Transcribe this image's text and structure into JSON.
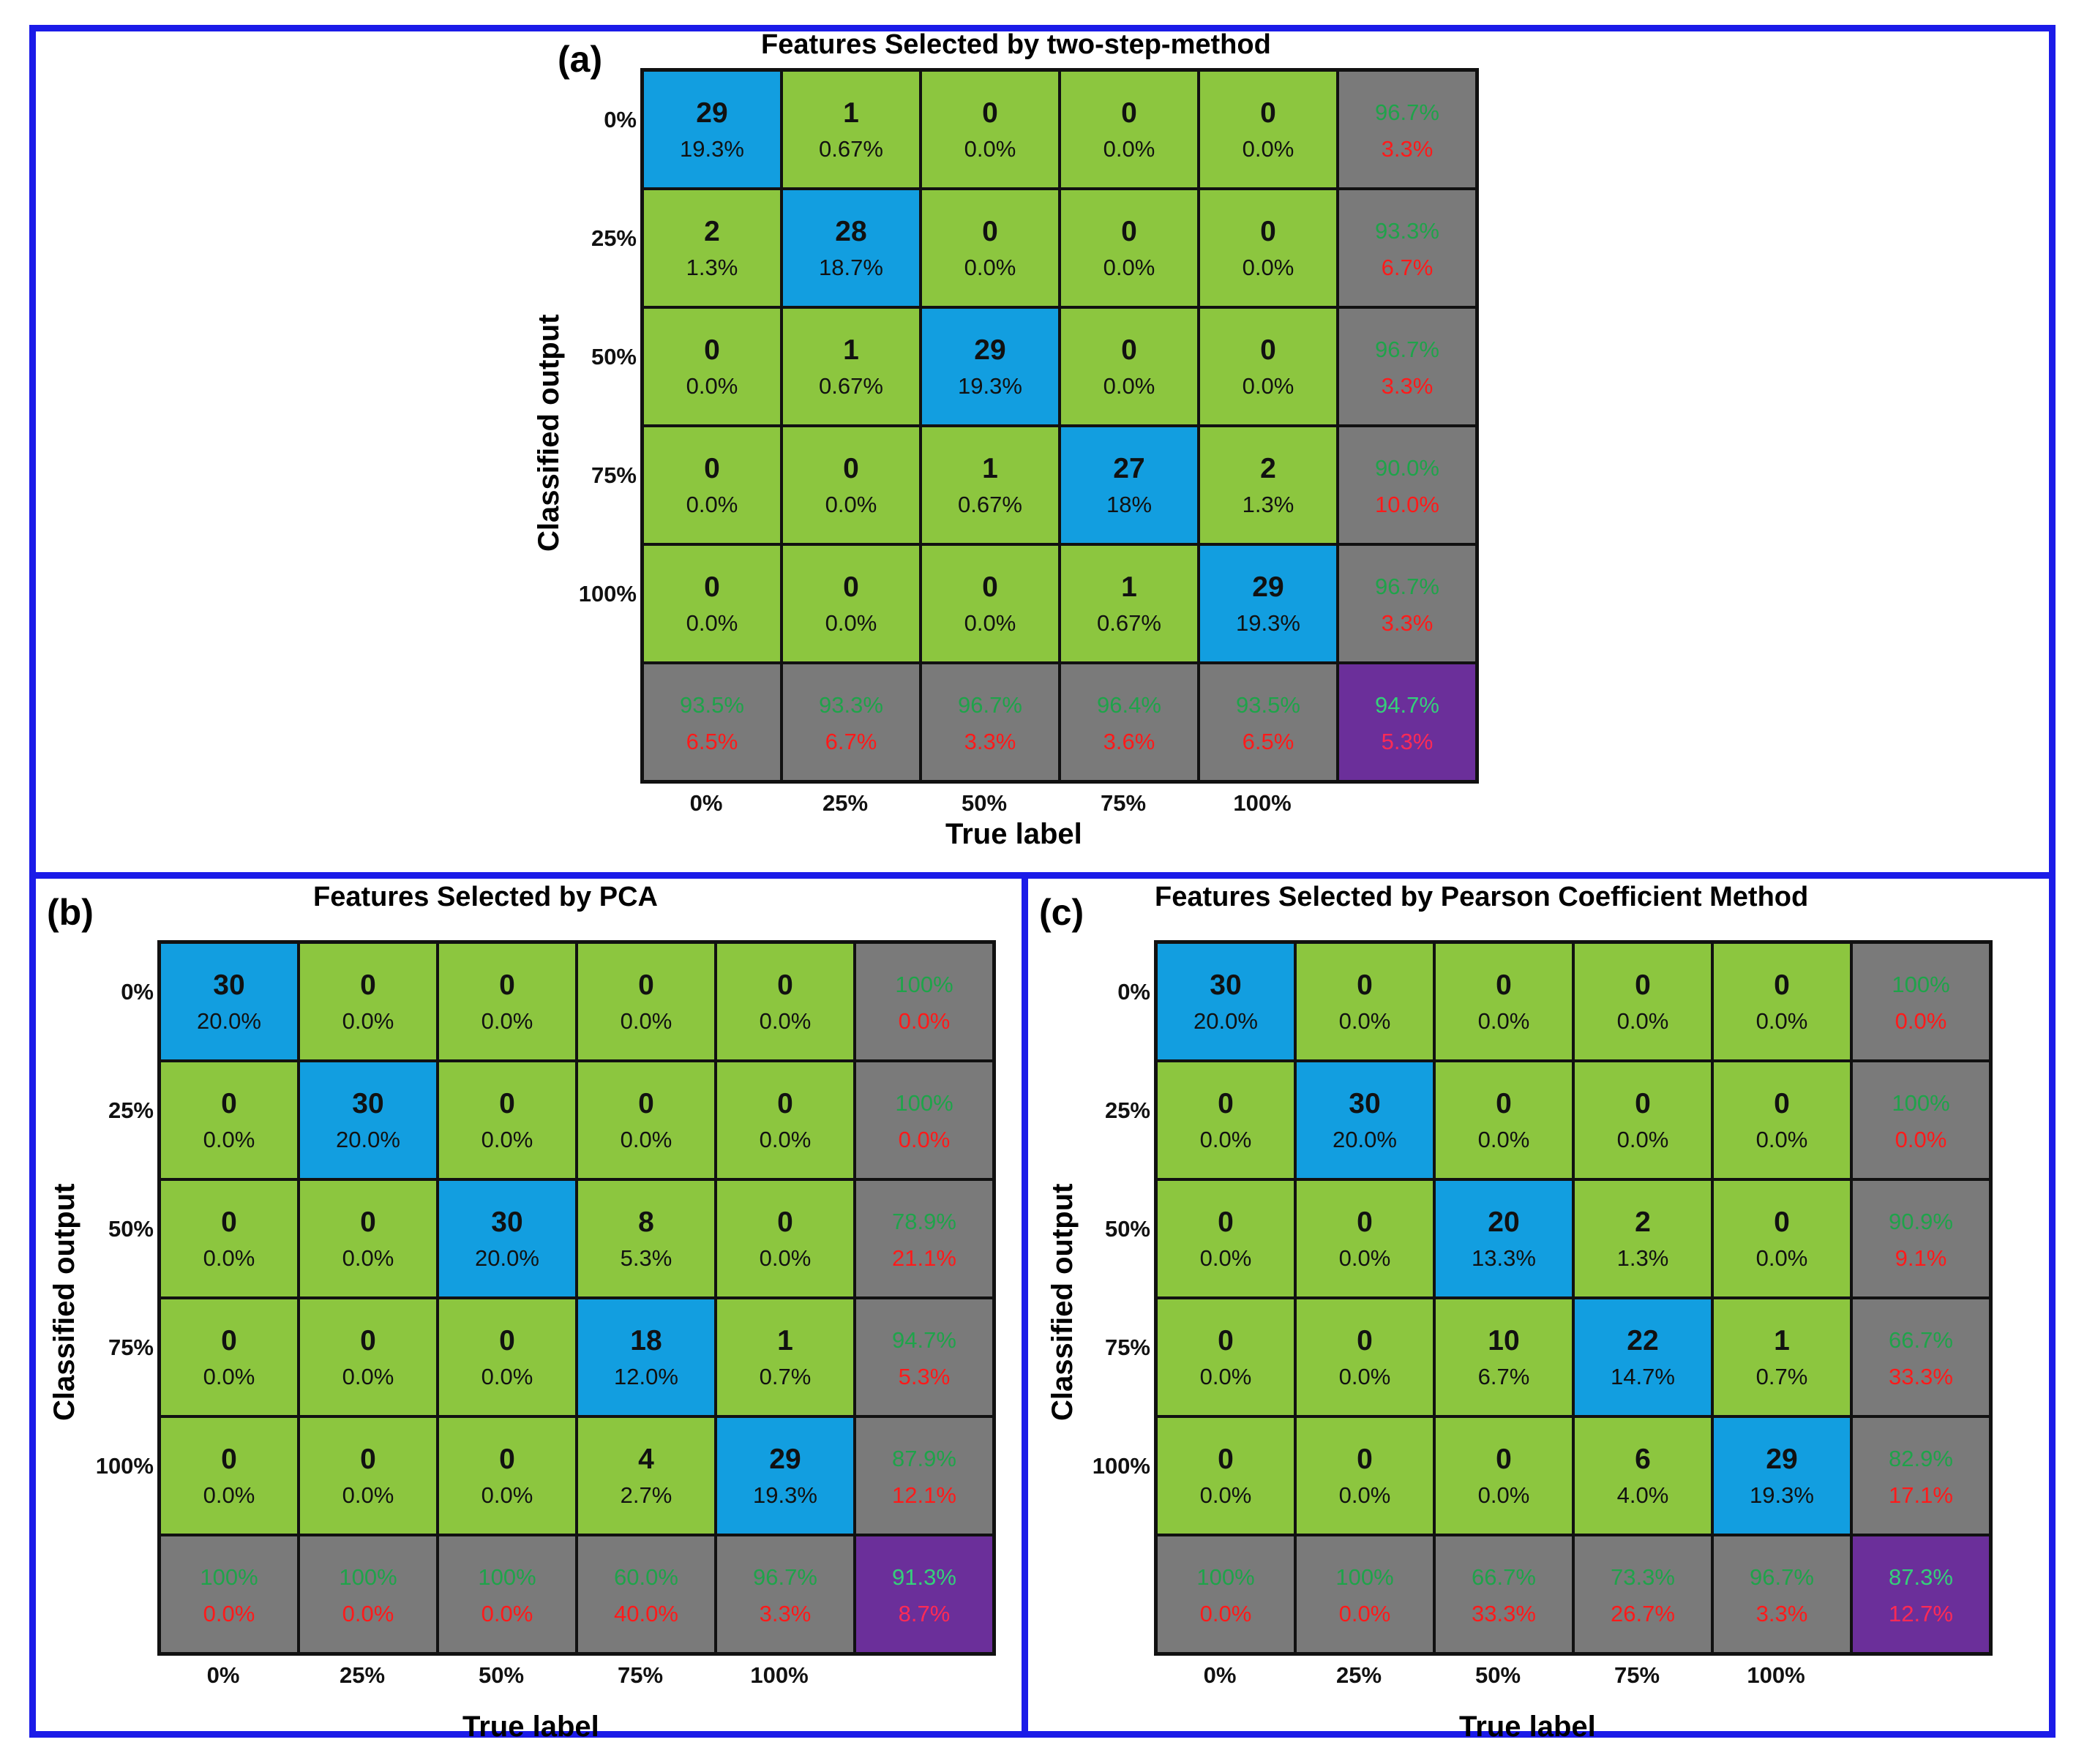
{
  "colors": {
    "frame": "#1b1be8",
    "correct_cell": "#129ee0",
    "wrong_cell": "#8cc63f",
    "summary_cell": "#7a7a7a",
    "overall_cell": "#6b2f9a",
    "good_text": "#1fa34a",
    "bad_text": "#ff1a1a"
  },
  "chart_data": [
    {
      "type": "heatmap",
      "panel": "(a)",
      "title": "Features Selected by two-step-method",
      "xlabel": "True label",
      "ylabel": "Classified output",
      "row_labels": [
        "0%",
        "25%",
        "50%",
        "75%",
        "100%"
      ],
      "col_labels": [
        "0%",
        "25%",
        "50%",
        "75%",
        "100%"
      ],
      "counts": [
        [
          29,
          1,
          0,
          0,
          0
        ],
        [
          2,
          28,
          0,
          0,
          0
        ],
        [
          0,
          1,
          29,
          0,
          0
        ],
        [
          0,
          0,
          1,
          27,
          2
        ],
        [
          0,
          0,
          0,
          1,
          29
        ]
      ],
      "percents": [
        [
          "19.3%",
          "0.67%",
          "0.0%",
          "0.0%",
          "0.0%"
        ],
        [
          "1.3%",
          "18.7%",
          "0.0%",
          "0.0%",
          "0.0%"
        ],
        [
          "0.0%",
          "0.67%",
          "19.3%",
          "0.0%",
          "0.0%"
        ],
        [
          "0.0%",
          "0.0%",
          "0.67%",
          "18%",
          "1.3%"
        ],
        [
          "0.0%",
          "0.0%",
          "0.0%",
          "0.67%",
          "19.3%"
        ]
      ],
      "row_summary": [
        [
          "96.7%",
          "3.3%"
        ],
        [
          "93.3%",
          "6.7%"
        ],
        [
          "96.7%",
          "3.3%"
        ],
        [
          "90.0%",
          "10.0%"
        ],
        [
          "96.7%",
          "3.3%"
        ]
      ],
      "col_summary": [
        [
          "93.5%",
          "6.5%"
        ],
        [
          "93.3%",
          "6.7%"
        ],
        [
          "96.7%",
          "3.3%"
        ],
        [
          "96.4%",
          "3.6%"
        ],
        [
          "93.5%",
          "6.5%"
        ]
      ],
      "overall": [
        "94.7%",
        "5.3%"
      ]
    },
    {
      "type": "heatmap",
      "panel": "(b)",
      "title": "Features Selected by PCA",
      "xlabel": "True label",
      "ylabel": "Classified output",
      "row_labels": [
        "0%",
        "25%",
        "50%",
        "75%",
        "100%"
      ],
      "col_labels": [
        "0%",
        "25%",
        "50%",
        "75%",
        "100%"
      ],
      "counts": [
        [
          30,
          0,
          0,
          0,
          0
        ],
        [
          0,
          30,
          0,
          0,
          0
        ],
        [
          0,
          0,
          30,
          8,
          0
        ],
        [
          0,
          0,
          0,
          18,
          1
        ],
        [
          0,
          0,
          0,
          4,
          29
        ]
      ],
      "percents": [
        [
          "20.0%",
          "0.0%",
          "0.0%",
          "0.0%",
          "0.0%"
        ],
        [
          "0.0%",
          "20.0%",
          "0.0%",
          "0.0%",
          "0.0%"
        ],
        [
          "0.0%",
          "0.0%",
          "20.0%",
          "5.3%",
          "0.0%"
        ],
        [
          "0.0%",
          "0.0%",
          "0.0%",
          "12.0%",
          "0.7%"
        ],
        [
          "0.0%",
          "0.0%",
          "0.0%",
          "2.7%",
          "19.3%"
        ]
      ],
      "row_summary": [
        [
          "100%",
          "0.0%"
        ],
        [
          "100%",
          "0.0%"
        ],
        [
          "78.9%",
          "21.1%"
        ],
        [
          "94.7%",
          "5.3%"
        ],
        [
          "87.9%",
          "12.1%"
        ]
      ],
      "col_summary": [
        [
          "100%",
          "0.0%"
        ],
        [
          "100%",
          "0.0%"
        ],
        [
          "100%",
          "0.0%"
        ],
        [
          "60.0%",
          "40.0%"
        ],
        [
          "96.7%",
          "3.3%"
        ]
      ],
      "overall": [
        "91.3%",
        "8.7%"
      ]
    },
    {
      "type": "heatmap",
      "panel": "(c)",
      "title": "Features Selected by Pearson Coefficient Method",
      "xlabel": "True label",
      "ylabel": "Classified output",
      "row_labels": [
        "0%",
        "25%",
        "50%",
        "75%",
        "100%"
      ],
      "col_labels": [
        "0%",
        "25%",
        "50%",
        "75%",
        "100%"
      ],
      "counts": [
        [
          30,
          0,
          0,
          0,
          0
        ],
        [
          0,
          30,
          0,
          0,
          0
        ],
        [
          0,
          0,
          20,
          2,
          0
        ],
        [
          0,
          0,
          10,
          22,
          1
        ],
        [
          0,
          0,
          0,
          6,
          29
        ]
      ],
      "percents": [
        [
          "20.0%",
          "0.0%",
          "0.0%",
          "0.0%",
          "0.0%"
        ],
        [
          "0.0%",
          "20.0%",
          "0.0%",
          "0.0%",
          "0.0%"
        ],
        [
          "0.0%",
          "0.0%",
          "13.3%",
          "1.3%",
          "0.0%"
        ],
        [
          "0.0%",
          "0.0%",
          "6.7%",
          "14.7%",
          "0.7%"
        ],
        [
          "0.0%",
          "0.0%",
          "0.0%",
          "4.0%",
          "19.3%"
        ]
      ],
      "row_summary": [
        [
          "100%",
          "0.0%"
        ],
        [
          "100%",
          "0.0%"
        ],
        [
          "90.9%",
          "9.1%"
        ],
        [
          "66.7%",
          "33.3%"
        ],
        [
          "82.9%",
          "17.1%"
        ]
      ],
      "col_summary": [
        [
          "100%",
          "0.0%"
        ],
        [
          "100%",
          "0.0%"
        ],
        [
          "66.7%",
          "33.3%"
        ],
        [
          "73.3%",
          "26.7%"
        ],
        [
          "96.7%",
          "3.3%"
        ]
      ],
      "overall": [
        "87.3%",
        "12.7%"
      ]
    }
  ]
}
